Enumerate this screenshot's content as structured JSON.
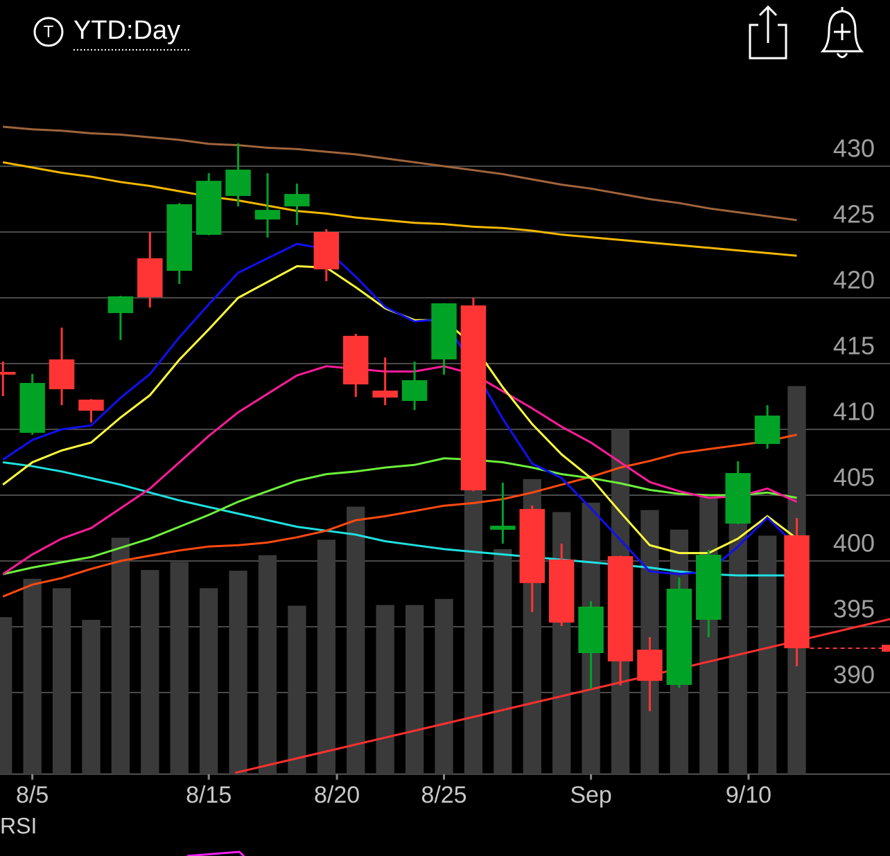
{
  "header": {
    "badge": "T"
  },
  "chart_data": {
    "type": "candlestick",
    "title": "YTD:Day",
    "indicator_label": "RSI",
    "up_color": "#00a326",
    "down_color": "#ff3535",
    "grid": true,
    "xlim": [
      -0.1,
      30.17
    ],
    "xticks": [
      {
        "value": 1,
        "label": "8/5"
      },
      {
        "value": 7,
        "label": "8/15"
      },
      {
        "value": 11.36,
        "label": "8/20"
      },
      {
        "value": 15,
        "label": "8/25"
      },
      {
        "value": 20,
        "label": "Sep"
      },
      {
        "value": 25.36,
        "label": "9/10"
      }
    ],
    "ylim": [
      383.8,
      435
    ],
    "yticks": [
      390,
      395,
      400,
      405,
      410,
      415,
      420,
      425,
      430
    ],
    "candles": {
      "open": [
        414.37,
        409.74,
        415.32,
        412.26,
        418.84,
        423.0,
        422.05,
        424.79,
        427.74,
        425.95,
        426.95,
        425.0,
        417.11,
        412.95,
        412.16,
        415.32,
        419.42,
        402.37,
        403.95,
        400.11,
        393.0,
        400.37,
        393.26,
        390.58,
        395.53,
        402.84,
        408.89,
        401.95
      ],
      "high": [
        415.16,
        414.21,
        417.74,
        412.3,
        420.15,
        425.0,
        427.2,
        429.47,
        431.74,
        429.47,
        428.68,
        425.21,
        417.26,
        415.47,
        415.16,
        419.6,
        420.0,
        405.95,
        404.21,
        401.32,
        396.95,
        400.4,
        394.21,
        398.74,
        400.84,
        407.58,
        411.84,
        403.26
      ],
      "low": [
        412.53,
        409.6,
        411.84,
        410.53,
        416.79,
        419.26,
        421.05,
        424.75,
        426.95,
        424.58,
        425.53,
        421.26,
        412.47,
        411.84,
        411.47,
        414.16,
        405.3,
        401.32,
        396.11,
        395.05,
        390.26,
        390.53,
        388.58,
        390.37,
        394.21,
        402.8,
        408.53,
        392.0
      ],
      "close": [
        414.16,
        413.53,
        413.05,
        411.42,
        420.11,
        420.05,
        427.11,
        428.89,
        429.74,
        426.68,
        427.89,
        422.16,
        413.42,
        412.42,
        413.74,
        419.58,
        405.37,
        402.68,
        398.32,
        395.32,
        396.53,
        392.37,
        390.89,
        397.89,
        400.47,
        406.68,
        411.05,
        393.37
      ]
    },
    "volume": {
      "color": "#3a3a3a",
      "y2lim": [
        0,
        100
      ],
      "values": [
        23.3,
        29.0,
        27.6,
        22.9,
        35.1,
        30.3,
        31.5,
        27.6,
        30.2,
        32.5,
        25.0,
        34.8,
        39.7,
        25.1,
        25.1,
        26.0,
        49.1,
        33.4,
        43.8,
        38.9,
        40.3,
        51.2,
        39.2,
        36.3,
        41.2,
        42.9,
        35.4,
        57.6
      ]
    },
    "lines": [
      {
        "color": "#a0643c",
        "values": [
          433.0,
          432.8,
          432.7,
          432.5,
          432.4,
          432.2,
          432.0,
          431.7,
          431.6,
          431.4,
          431.3,
          431.1,
          430.9,
          430.6,
          430.3,
          430.0,
          429.7,
          429.4,
          429.0,
          428.6,
          428.3,
          427.9,
          427.5,
          427.2,
          426.8,
          426.5,
          426.2,
          425.9
        ]
      },
      {
        "color": "#f5b800",
        "values": [
          430.3,
          429.9,
          429.5,
          429.2,
          428.8,
          428.5,
          428.1,
          427.7,
          427.4,
          427.0,
          426.6,
          426.4,
          426.1,
          425.9,
          425.7,
          425.6,
          425.4,
          425.3,
          425.1,
          424.8,
          424.6,
          424.4,
          424.2,
          424.0,
          423.8,
          423.6,
          423.4,
          423.2
        ]
      },
      {
        "color": "#20e0e0",
        "values": [
          407.5,
          407.2,
          406.8,
          406.3,
          405.8,
          405.2,
          404.6,
          404.1,
          403.6,
          403.1,
          402.6,
          402.3,
          402.0,
          401.5,
          401.2,
          400.9,
          400.7,
          400.5,
          400.3,
          400.1,
          399.9,
          399.7,
          399.5,
          399.2,
          399.0,
          398.9,
          398.9,
          398.9
        ]
      },
      {
        "color": "#ff4a10",
        "values": [
          397.3,
          398.2,
          398.7,
          399.4,
          400.0,
          400.4,
          400.8,
          401.1,
          401.2,
          401.4,
          401.8,
          402.3,
          403.1,
          403.4,
          403.8,
          404.2,
          404.4,
          404.7,
          405.2,
          405.8,
          406.4,
          407.1,
          407.6,
          408.2,
          408.5,
          408.8,
          409.1,
          409.6
        ]
      },
      {
        "color": "#6ef03c",
        "values": [
          399.0,
          399.5,
          399.9,
          400.3,
          401.0,
          401.7,
          402.6,
          403.5,
          404.5,
          405.3,
          406.1,
          406.6,
          406.8,
          407.1,
          407.3,
          407.8,
          407.7,
          407.5,
          407.1,
          406.6,
          406.3,
          405.9,
          405.4,
          405.1,
          405.0,
          405.0,
          405.2,
          404.8
        ]
      },
      {
        "color": "#ff1c9a",
        "values": [
          399.0,
          400.5,
          401.7,
          402.5,
          404.0,
          405.5,
          407.5,
          409.5,
          411.3,
          412.7,
          414.1,
          414.8,
          414.6,
          414.4,
          414.4,
          414.8,
          414.2,
          412.9,
          411.6,
          410.2,
          409.0,
          407.5,
          406.0,
          405.3,
          404.8,
          404.9,
          405.5,
          404.5
        ]
      },
      {
        "color": "#ffff3c",
        "values": [
          405.8,
          407.5,
          408.4,
          409.0,
          410.9,
          412.6,
          415.3,
          417.6,
          420.0,
          421.2,
          422.4,
          422.3,
          420.8,
          419.2,
          418.3,
          418.3,
          416.4,
          413.2,
          410.4,
          408.1,
          406.3,
          403.7,
          401.2,
          400.6,
          400.6,
          401.7,
          403.4,
          401.7
        ]
      },
      {
        "color": "#1010f0",
        "values": [
          407.7,
          409.2,
          410.0,
          410.3,
          412.4,
          414.2,
          417.0,
          419.5,
          421.9,
          423.0,
          424.1,
          423.7,
          421.6,
          419.3,
          418.2,
          418.4,
          414.7,
          410.8,
          407.4,
          406.3,
          404.0,
          401.6,
          399.2,
          399.0,
          399.2,
          401.1,
          403.3,
          401.1
        ]
      }
    ],
    "trendline": {
      "color": "#ff3030",
      "x": [
        7.9,
        30.2
      ],
      "values": [
        383.9,
        395.6
      ]
    }
  }
}
